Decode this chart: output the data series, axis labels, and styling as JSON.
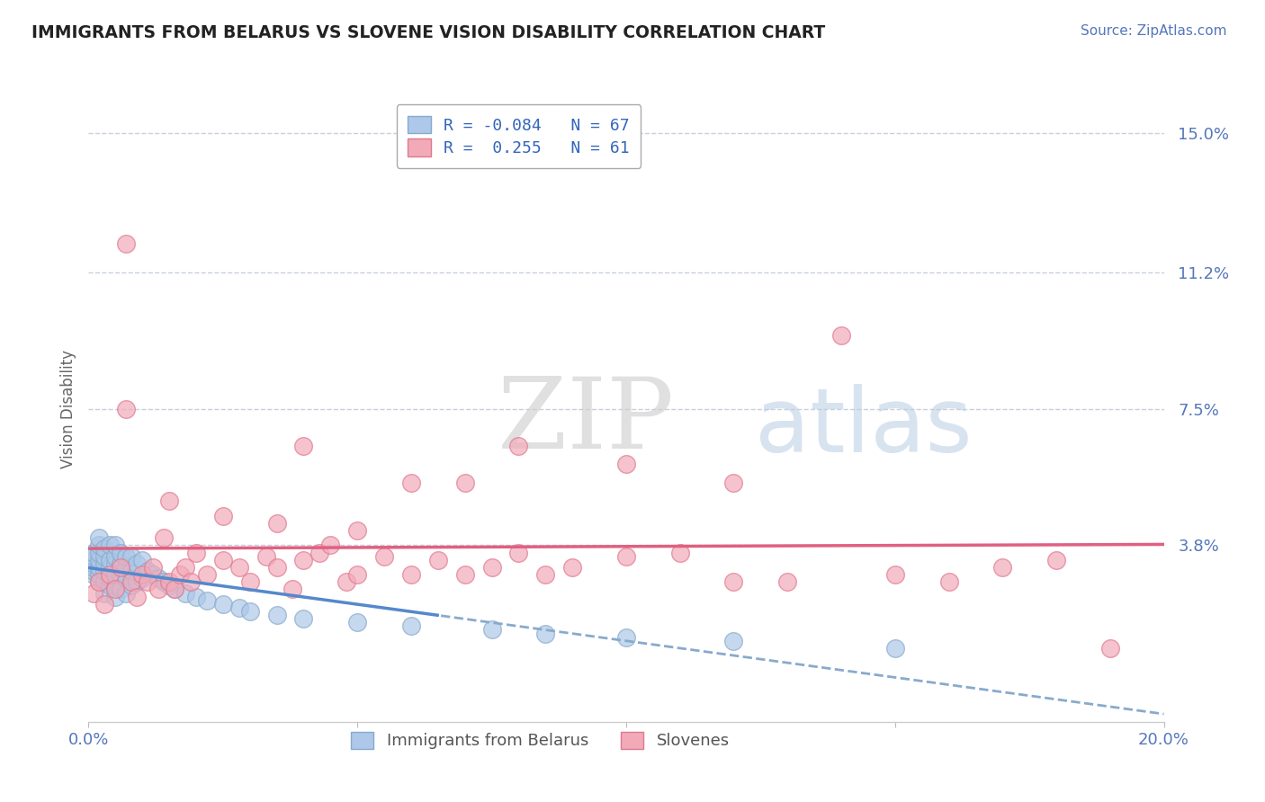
{
  "title": "IMMIGRANTS FROM BELARUS VS SLOVENE VISION DISABILITY CORRELATION CHART",
  "source_text": "Source: ZipAtlas.com",
  "ylabel": "Vision Disability",
  "watermark_zip": "ZIP",
  "watermark_atlas": "atlas",
  "xlim": [
    0.0,
    0.2
  ],
  "ylim": [
    -0.01,
    0.16
  ],
  "xticks": [
    0.0,
    0.05,
    0.1,
    0.15,
    0.2
  ],
  "xtick_labels": [
    "0.0%",
    "",
    "",
    "",
    "20.0%"
  ],
  "ytick_positions": [
    0.038,
    0.075,
    0.112,
    0.15
  ],
  "ytick_labels": [
    "3.8%",
    "7.5%",
    "11.2%",
    "15.0%"
  ],
  "blue_R": -0.084,
  "blue_N": 67,
  "pink_R": 0.255,
  "pink_N": 61,
  "blue_color": "#adc8e8",
  "pink_color": "#f2aab8",
  "blue_edge": "#88aacc",
  "pink_edge": "#e07890",
  "trend_blue_solid_color": "#5588cc",
  "trend_blue_dash_color": "#88aacc",
  "trend_pink_color": "#e06080",
  "grid_color": "#c8d0de",
  "title_color": "#222222",
  "axis_label_color": "#5577bb",
  "blue_scatter_x": [
    0.001,
    0.001,
    0.001,
    0.001,
    0.001,
    0.001,
    0.001,
    0.002,
    0.002,
    0.002,
    0.002,
    0.002,
    0.002,
    0.002,
    0.003,
    0.003,
    0.003,
    0.003,
    0.003,
    0.003,
    0.004,
    0.004,
    0.004,
    0.004,
    0.004,
    0.005,
    0.005,
    0.005,
    0.005,
    0.005,
    0.005,
    0.006,
    0.006,
    0.006,
    0.006,
    0.007,
    0.007,
    0.007,
    0.007,
    0.008,
    0.008,
    0.008,
    0.009,
    0.009,
    0.01,
    0.01,
    0.011,
    0.012,
    0.013,
    0.014,
    0.015,
    0.016,
    0.018,
    0.02,
    0.022,
    0.025,
    0.028,
    0.03,
    0.035,
    0.04,
    0.05,
    0.06,
    0.075,
    0.085,
    0.1,
    0.12,
    0.15
  ],
  "blue_scatter_y": [
    0.03,
    0.031,
    0.032,
    0.033,
    0.034,
    0.035,
    0.036,
    0.028,
    0.03,
    0.032,
    0.034,
    0.036,
    0.038,
    0.04,
    0.025,
    0.028,
    0.031,
    0.033,
    0.035,
    0.037,
    0.027,
    0.029,
    0.032,
    0.034,
    0.038,
    0.024,
    0.027,
    0.03,
    0.033,
    0.035,
    0.038,
    0.026,
    0.03,
    0.033,
    0.036,
    0.025,
    0.029,
    0.032,
    0.035,
    0.027,
    0.031,
    0.035,
    0.028,
    0.033,
    0.029,
    0.034,
    0.031,
    0.03,
    0.029,
    0.028,
    0.027,
    0.026,
    0.025,
    0.024,
    0.023,
    0.022,
    0.021,
    0.02,
    0.019,
    0.018,
    0.017,
    0.016,
    0.015,
    0.014,
    0.013,
    0.012,
    0.01
  ],
  "pink_scatter_x": [
    0.001,
    0.002,
    0.003,
    0.004,
    0.005,
    0.006,
    0.007,
    0.008,
    0.009,
    0.01,
    0.011,
    0.012,
    0.013,
    0.014,
    0.015,
    0.016,
    0.017,
    0.018,
    0.019,
    0.02,
    0.022,
    0.025,
    0.028,
    0.03,
    0.033,
    0.035,
    0.038,
    0.04,
    0.043,
    0.045,
    0.048,
    0.05,
    0.055,
    0.06,
    0.065,
    0.07,
    0.075,
    0.08,
    0.085,
    0.09,
    0.1,
    0.11,
    0.12,
    0.13,
    0.14,
    0.15,
    0.16,
    0.17,
    0.18,
    0.19,
    0.04,
    0.06,
    0.08,
    0.1,
    0.12,
    0.007,
    0.015,
    0.025,
    0.035,
    0.05,
    0.07
  ],
  "pink_scatter_y": [
    0.025,
    0.028,
    0.022,
    0.03,
    0.026,
    0.032,
    0.12,
    0.028,
    0.024,
    0.03,
    0.028,
    0.032,
    0.026,
    0.04,
    0.028,
    0.026,
    0.03,
    0.032,
    0.028,
    0.036,
    0.03,
    0.034,
    0.032,
    0.028,
    0.035,
    0.032,
    0.026,
    0.034,
    0.036,
    0.038,
    0.028,
    0.03,
    0.035,
    0.03,
    0.034,
    0.03,
    0.032,
    0.036,
    0.03,
    0.032,
    0.035,
    0.036,
    0.028,
    0.028,
    0.095,
    0.03,
    0.028,
    0.032,
    0.034,
    0.01,
    0.065,
    0.055,
    0.065,
    0.06,
    0.055,
    0.075,
    0.05,
    0.046,
    0.044,
    0.042,
    0.055
  ]
}
